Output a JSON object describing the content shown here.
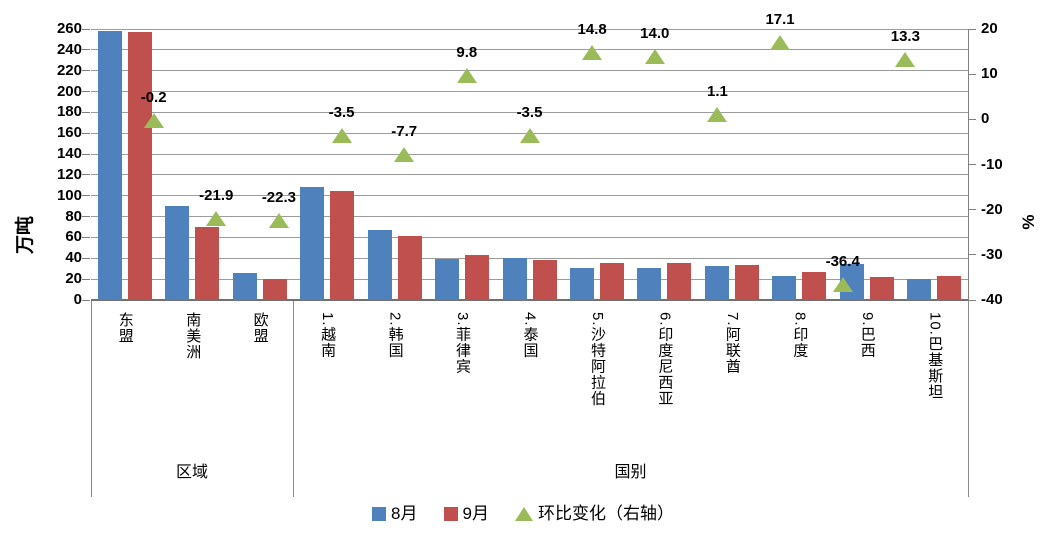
{
  "chart_data": {
    "type": "bar",
    "subtype": "combo-bar-with-scatter-triangles",
    "title": "",
    "left_axis": {
      "label": "万吨",
      "min": 0,
      "max": 260,
      "step": 20,
      "tick_labels": [
        "0",
        "20",
        "40",
        "60",
        "80",
        "100",
        "120",
        "140",
        "160",
        "180",
        "200",
        "220",
        "240",
        "260"
      ]
    },
    "right_axis": {
      "label": "%",
      "min": -40,
      "max": 20,
      "step": 10,
      "tick_labels": [
        "-40",
        "-30",
        "-20",
        "-10",
        "0",
        "10",
        "20"
      ]
    },
    "groups": [
      {
        "label": "区域",
        "count": 3
      },
      {
        "label": "国别",
        "count": 10
      }
    ],
    "categories": [
      "东盟",
      "南美洲",
      "欧盟",
      "1.越南",
      "2.韩国",
      "3.菲律宾",
      "4.泰国",
      "5.沙特阿拉伯",
      "6.印度尼西亚",
      "7.阿联酋",
      "8.印度",
      "9.巴西",
      "10.巴基斯坦"
    ],
    "series": [
      {
        "name": "8月",
        "type": "bar",
        "axis": "left",
        "color": "#4F81BD",
        "values": [
          258,
          90,
          26,
          108,
          67,
          39,
          40,
          31,
          31,
          33,
          23,
          35,
          20
        ]
      },
      {
        "name": "9月",
        "type": "bar",
        "axis": "left",
        "color": "#C0504D",
        "values": [
          257.5,
          70.3,
          20.2,
          104.2,
          61.8,
          42.8,
          38.6,
          35.6,
          35.3,
          33.4,
          26.9,
          22.3,
          22.7
        ]
      },
      {
        "name": "环比变化（右轴）",
        "type": "scatter-triangle",
        "axis": "right",
        "color": "#9BBB59",
        "values": [
          -0.2,
          -21.9,
          -22.3,
          -3.5,
          -7.7,
          9.8,
          -3.5,
          14.8,
          14.0,
          1.1,
          17.1,
          -36.4,
          13.3
        ]
      }
    ],
    "data_labels": [
      "-0.2",
      "-21.9",
      "-22.3",
      "-3.5",
      "-7.7",
      "9.8",
      "-3.5",
      "14.8",
      "14.0",
      "1.1",
      "17.1",
      "-36.4",
      "13.3"
    ],
    "legend": [
      "8月",
      "9月",
      "环比变化（右轴）"
    ],
    "grid": true,
    "legend_position": "bottom"
  }
}
